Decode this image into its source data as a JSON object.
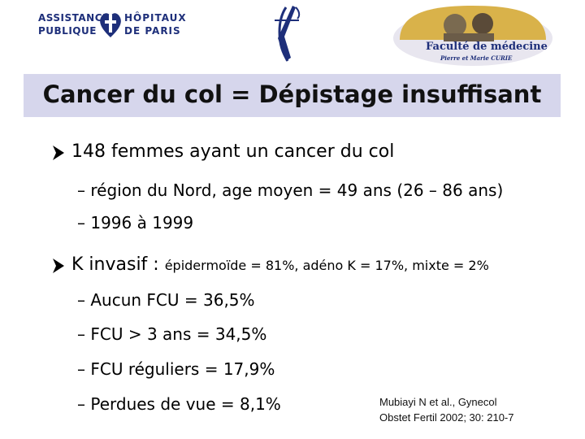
{
  "logos": {
    "aphp_left_1": "ASSISTANCE",
    "aphp_left_2": "PUBLIQUE",
    "aphp_right_1": "HÔPITAUX",
    "aphp_right_2": "DE PARIS",
    "faculty_title": "Faculté de médecine",
    "faculty_sub": "Pierre et Marie CURIE"
  },
  "title": "Cancer du col = Dépistage insuffisant",
  "bullets": [
    {
      "text": "148 femmes ayant un cancer du col",
      "sub": [
        "région du Nord, age moyen = 49 ans (26 – 86 ans)",
        "1996 à 1999"
      ]
    },
    {
      "text": "K invasif :",
      "detail": "épidermoïde = 81%, adéno K = 17%, mixte = 2%",
      "sub": [
        "Aucun FCU = 36,5%",
        "FCU > 3 ans = 34,5%",
        "FCU réguliers = 17,9%",
        "Perdues de vue = 8,1%"
      ]
    }
  ],
  "reference": {
    "line1": "Mubiayi N et al., Gynecol",
    "line2": "Obstet Fertil 2002; 30: 210-7"
  },
  "colors": {
    "title_bar": "#d6d6ec",
    "logo_blue": "#1e2f7a"
  }
}
